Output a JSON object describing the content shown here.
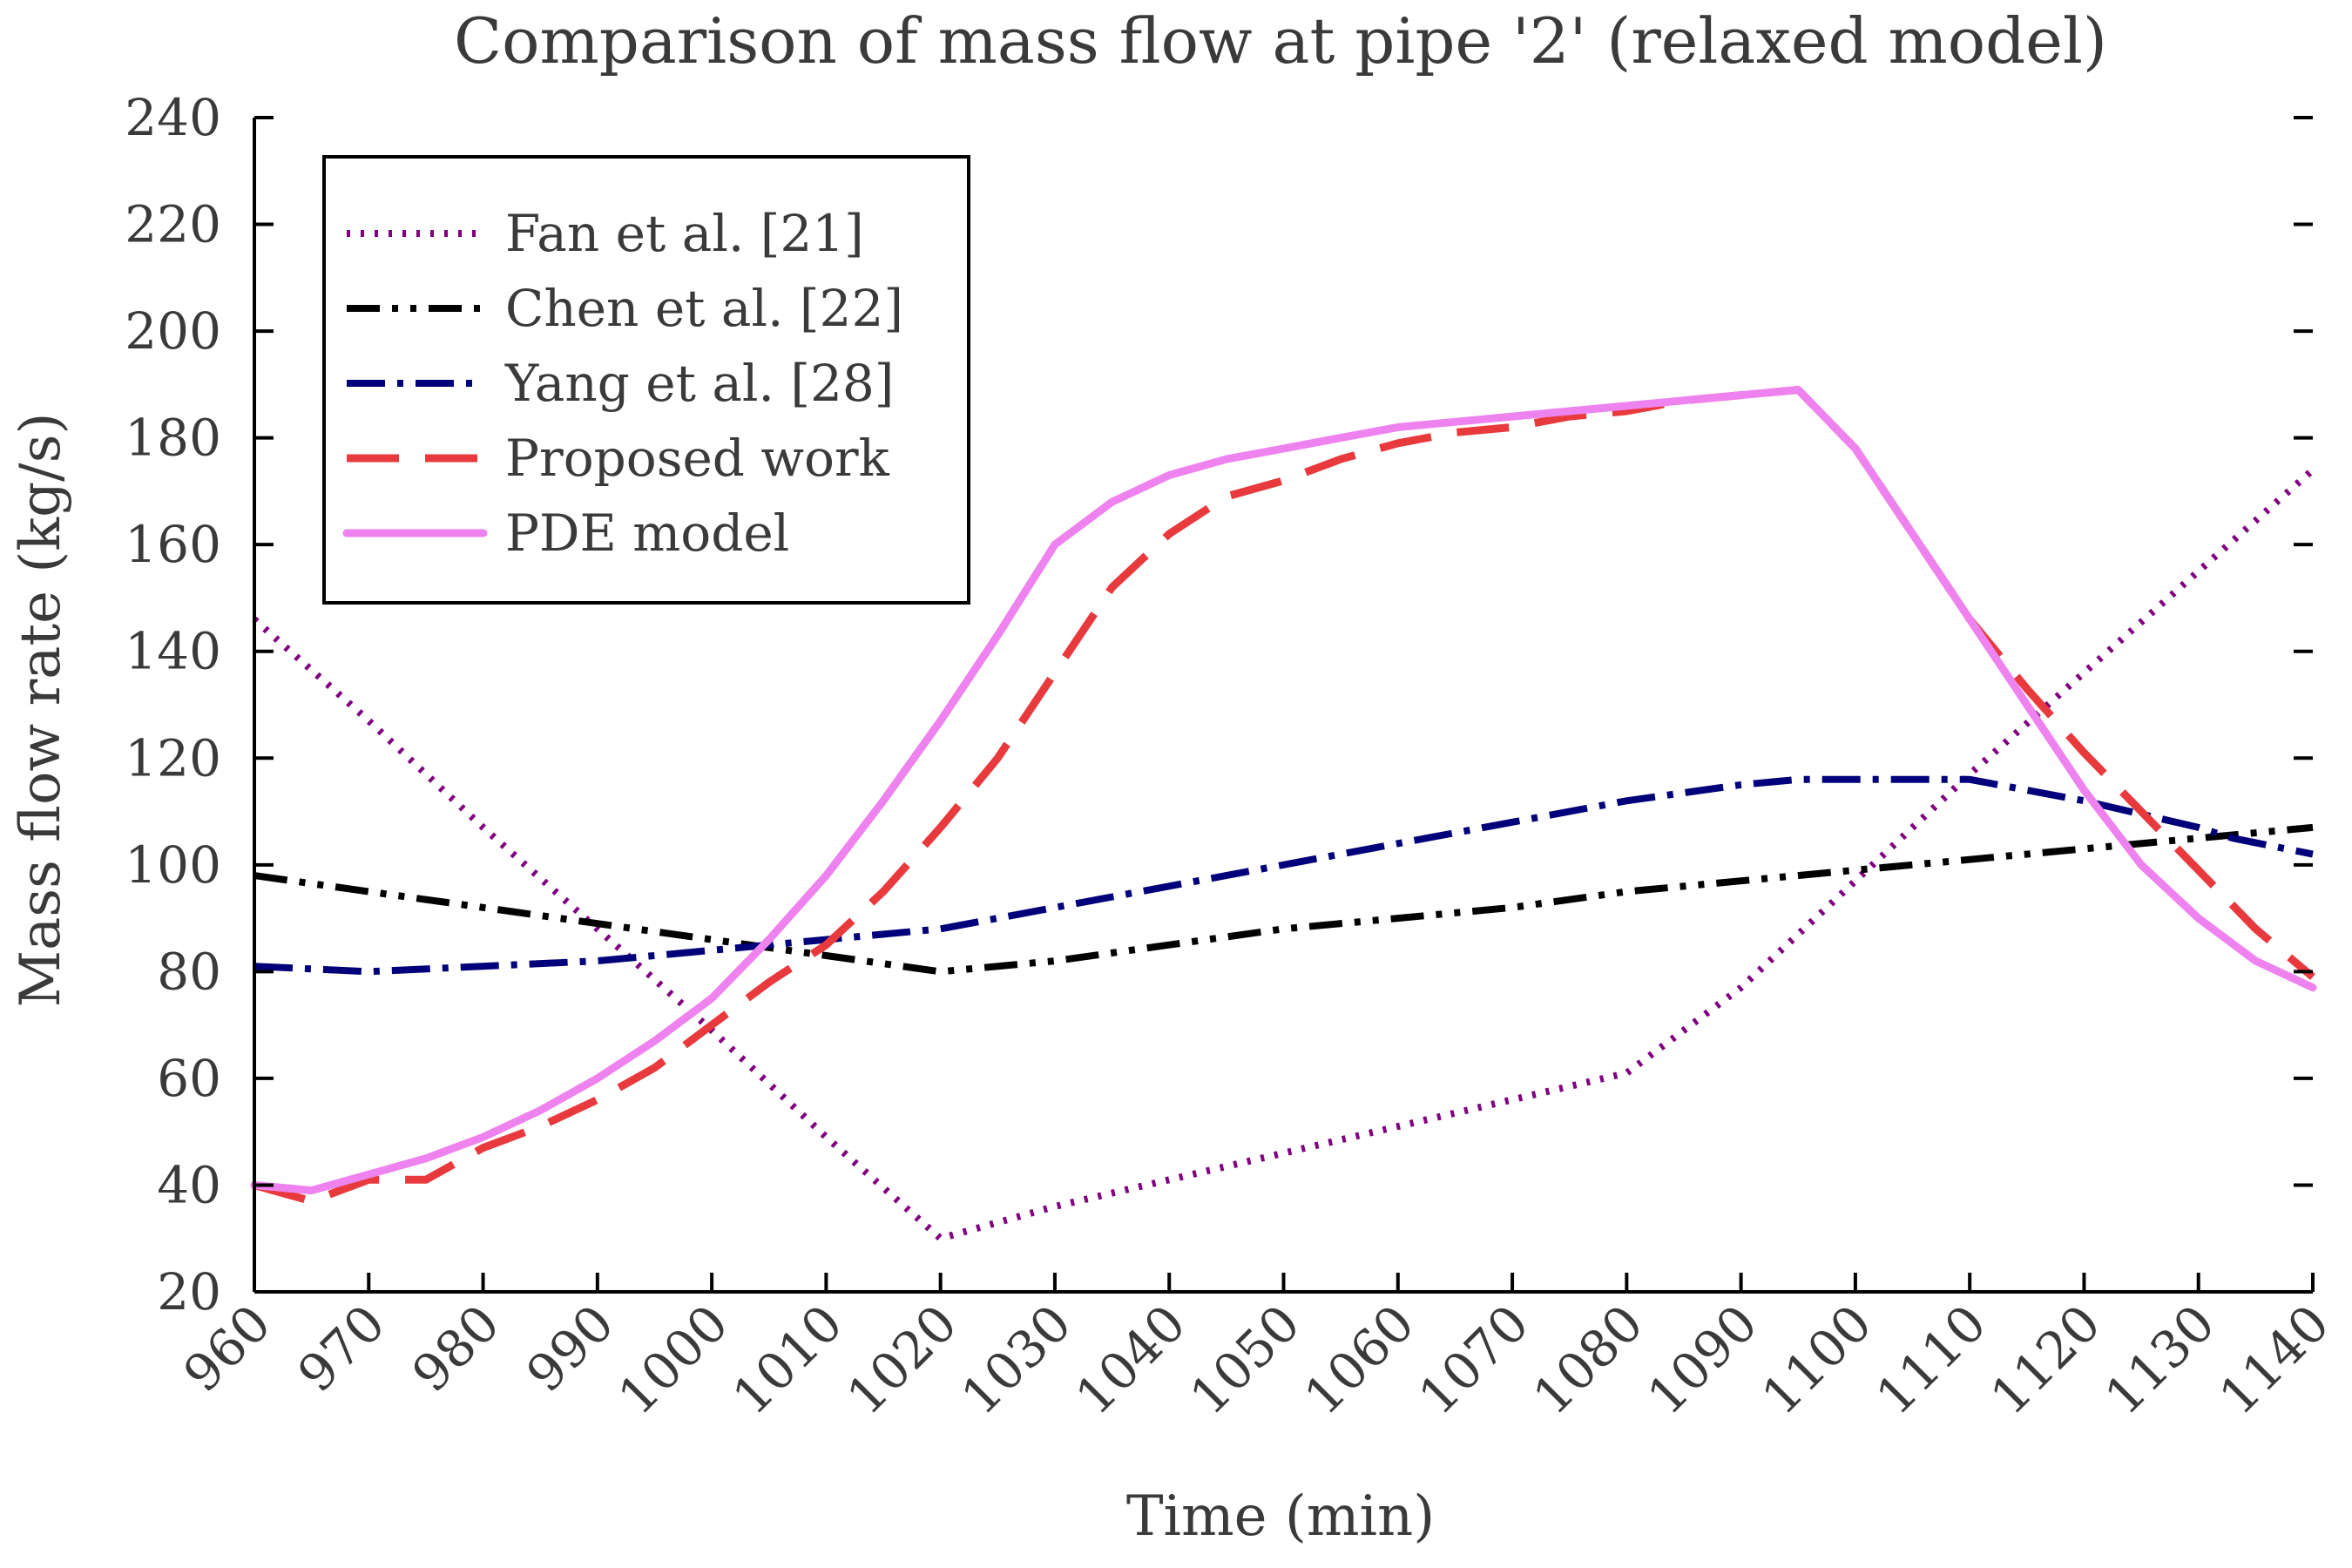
{
  "chart_data": {
    "type": "line",
    "title": "Comparison of mass flow at pipe '2' (relaxed model)",
    "xlabel": "Time (min)",
    "ylabel": "Mass flow rate (kg/s)",
    "xlim": [
      960,
      1140
    ],
    "ylim": [
      20,
      240
    ],
    "xticks": [
      960,
      970,
      980,
      990,
      1000,
      1010,
      1020,
      1030,
      1040,
      1050,
      1060,
      1070,
      1080,
      1090,
      1100,
      1110,
      1120,
      1130,
      1140
    ],
    "xtick_labels": [
      "960",
      "970",
      "980",
      "990",
      "1000",
      "1010",
      "1020",
      "1030",
      "1040",
      "1050",
      "1060",
      "1070",
      "1080",
      "1090",
      "1100",
      "1110",
      "1120",
      "1130",
      "1140"
    ],
    "yticks": [
      20,
      40,
      60,
      80,
      100,
      120,
      140,
      160,
      180,
      200,
      220,
      240
    ],
    "ytick_labels": [
      "20",
      "40",
      "60",
      "80",
      "100",
      "120",
      "140",
      "160",
      "180",
      "200",
      "220",
      "240"
    ],
    "grid": false,
    "legend_position": "top-left",
    "series": [
      {
        "name": "Fan et al. [21]",
        "color": "#800080",
        "style": "dotted",
        "x": [
          960,
          970,
          980,
          990,
          1000,
          1010,
          1020,
          1030,
          1040,
          1050,
          1060,
          1070,
          1080,
          1090,
          1100,
          1110,
          1120,
          1130,
          1140
        ],
        "y": [
          146,
          127,
          107,
          88,
          69,
          49,
          30,
          36,
          41,
          46,
          51,
          56,
          61,
          77,
          97,
          117,
          136,
          155,
          174
        ]
      },
      {
        "name": "Chen et al. [22]",
        "color": "#000000",
        "style": "dash-dot-dot",
        "x": [
          960,
          970,
          980,
          990,
          1000,
          1010,
          1020,
          1030,
          1040,
          1050,
          1060,
          1070,
          1080,
          1090,
          1100,
          1110,
          1120,
          1130,
          1140
        ],
        "y": [
          98,
          95,
          92,
          89,
          86,
          83,
          80,
          82,
          85,
          88,
          90,
          92,
          95,
          97,
          99,
          101,
          103,
          105,
          107
        ]
      },
      {
        "name": "Yang et al. [28]",
        "color": "#00007a",
        "style": "dash-dot",
        "x": [
          960,
          970,
          980,
          990,
          1000,
          1010,
          1020,
          1030,
          1040,
          1050,
          1060,
          1070,
          1080,
          1090,
          1095,
          1100,
          1105,
          1110,
          1120,
          1130,
          1133,
          1140
        ],
        "y": [
          81,
          80,
          81,
          82,
          84,
          86,
          88,
          92,
          96,
          100,
          104,
          108,
          112,
          115,
          116,
          116,
          116,
          116,
          112,
          107,
          105,
          102
        ]
      },
      {
        "name": "Proposed work",
        "color": "#e8393d",
        "style": "dashed",
        "x": [
          960,
          965,
          970,
          975,
          980,
          985,
          990,
          995,
          1000,
          1005,
          1010,
          1015,
          1020,
          1025,
          1030,
          1035,
          1040,
          1045,
          1050,
          1055,
          1060,
          1065,
          1070,
          1075,
          1080,
          1085,
          1090,
          1095,
          1100,
          1105,
          1110,
          1115,
          1120,
          1125,
          1130,
          1135,
          1140
        ],
        "y": [
          40,
          37,
          41,
          41,
          47,
          51,
          56,
          62,
          70,
          78,
          85,
          95,
          107,
          120,
          136,
          152,
          162,
          169,
          172,
          176,
          179,
          181,
          182,
          184,
          185,
          187,
          188,
          189,
          178,
          162,
          146,
          133,
          121,
          110,
          99,
          88,
          79
        ]
      },
      {
        "name": "PDE model",
        "color": "#ee82ee",
        "style": "solid",
        "x": [
          960,
          965,
          970,
          975,
          980,
          985,
          990,
          995,
          1000,
          1005,
          1010,
          1015,
          1020,
          1025,
          1030,
          1035,
          1040,
          1045,
          1050,
          1055,
          1060,
          1065,
          1070,
          1075,
          1080,
          1085,
          1090,
          1095,
          1100,
          1105,
          1110,
          1115,
          1120,
          1125,
          1130,
          1135,
          1140
        ],
        "y": [
          40,
          39,
          42,
          45,
          49,
          54,
          60,
          67,
          75,
          86,
          98,
          112,
          127,
          143,
          160,
          168,
          173,
          176,
          178,
          180,
          182,
          183,
          184,
          185,
          186,
          187,
          188,
          189,
          178,
          162,
          146,
          130,
          114,
          100,
          90,
          82,
          77
        ]
      }
    ]
  }
}
